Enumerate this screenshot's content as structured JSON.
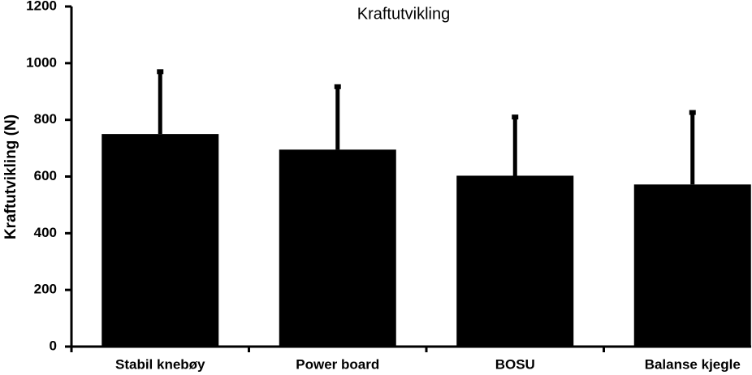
{
  "chart_data": {
    "type": "bar",
    "title": "Kraftutvikling",
    "y_label": "Kraftutvikling (N)",
    "categories": [
      "Stabil knebøy",
      "Power board",
      "BOSU",
      "Balanse kjegle"
    ],
    "values": [
      750,
      695,
      603,
      572
    ],
    "errors": [
      220,
      222,
      207,
      254
    ],
    "color": "#000000",
    "ylim": [
      0,
      1200
    ],
    "yticks": [
      0,
      200,
      400,
      600,
      800,
      1000,
      1200
    ],
    "grid": false
  }
}
